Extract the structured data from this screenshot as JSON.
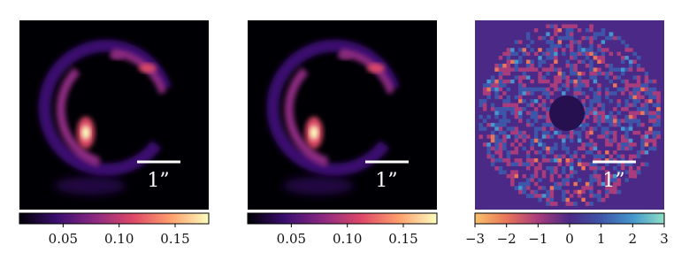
{
  "chart_data": [
    {
      "type": "image",
      "colors": [
        "#000004",
        "#3b0f70",
        "#8c2981",
        "#de4968",
        "#fe9f6d",
        "#fcfdbf"
      ],
      "scalebar_label": "1”",
      "xlim": [
        0.011,
        0.18
      ],
      "xticks": [
        0.05,
        {
          "value": 0.1,
          "label": "0.10"
        },
        0.15
      ]
    },
    {
      "type": "image",
      "colors": [
        "#000004",
        "#3b0f70",
        "#8c2981",
        "#de4968",
        "#fe9f6d",
        "#fcfdbf"
      ],
      "scalebar_label": "1”",
      "xlim": [
        0.011,
        0.18
      ],
      "xticks": [
        0.05,
        {
          "value": 0.1,
          "label": "0.10"
        },
        0.15
      ]
    },
    {
      "type": "residual",
      "colors": [
        "#f9c26b",
        "#e9755a",
        "#a93c7c",
        "#4a2a86",
        "#3f55a9",
        "#4597cd",
        "#8de0c5"
      ],
      "scalebar_label": "1”",
      "xlim": [
        -3,
        3
      ],
      "xticks": [
        {
          "value": -3,
          "label": "−3"
        },
        {
          "value": -2,
          "label": "−2"
        },
        {
          "value": -1,
          "label": "−1"
        },
        0,
        1,
        2,
        3
      ]
    }
  ]
}
